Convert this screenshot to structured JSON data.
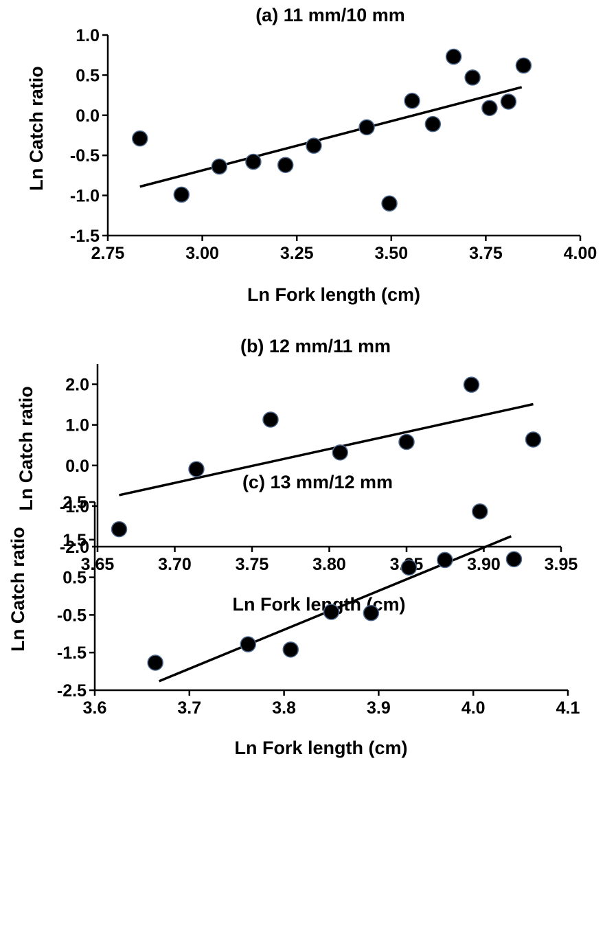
{
  "chart_data": [
    {
      "type": "scatter",
      "title": "(a) 11 mm/10 mm",
      "xlabel": "Ln Fork length (cm)",
      "ylabel": "Ln Catch ratio",
      "xlim": [
        2.75,
        4.0
      ],
      "ylim": [
        -1.5,
        1.0
      ],
      "xticks": [
        "2.75",
        "3.00",
        "3.25",
        "3.50",
        "3.75",
        "4.00"
      ],
      "yticks": [
        "1.0",
        "0.5",
        "0.0",
        "-0.5",
        "-1.0",
        "-1.5"
      ],
      "grid": false,
      "series": [
        {
          "marker": "circle",
          "color": "#000000",
          "x": [
            2.835,
            2.945,
            3.045,
            3.135,
            3.22,
            3.295,
            3.435,
            3.495,
            3.555,
            3.61,
            3.665,
            3.715,
            3.76,
            3.81,
            3.85
          ],
          "y": [
            -0.29,
            -0.99,
            -0.64,
            -0.58,
            -0.62,
            -0.38,
            -0.15,
            -1.1,
            0.18,
            -0.11,
            0.73,
            0.47,
            0.09,
            0.17,
            0.62
          ]
        }
      ],
      "trendline": {
        "type": "linear",
        "x": [
          2.835,
          3.845
        ],
        "y": [
          -0.89,
          0.35
        ]
      }
    },
    {
      "type": "scatter",
      "title": "(b) 12 mm/11 mm",
      "xlabel": "Ln Fork length (cm)",
      "ylabel": "Ln Catch ratio",
      "xlim": [
        3.65,
        3.95
      ],
      "ylim": [
        -2.0,
        2.5
      ],
      "xticks": [
        "3.65",
        "3.70",
        "3.75",
        "3.80",
        "3.85",
        "3.90",
        "3.95"
      ],
      "yticks": [
        "2.0",
        "1.0",
        "0.0",
        "-1.0",
        "-2.0"
      ],
      "grid": false,
      "series": [
        {
          "marker": "circle",
          "color": "#000000",
          "x": [
            3.664,
            3.714,
            3.762,
            3.807,
            3.85,
            3.892,
            3.932
          ],
          "y": [
            -1.57,
            -0.09,
            1.13,
            0.32,
            0.58,
            1.99,
            0.64
          ]
        }
      ],
      "trendline": {
        "type": "linear",
        "x": [
          3.664,
          3.932
        ],
        "y": [
          -0.73,
          1.51
        ]
      }
    },
    {
      "type": "scatter",
      "title": "(c) 13 mm/12 mm",
      "xlabel": "Ln Fork length (cm)",
      "ylabel": "Ln Catch ratio",
      "xlim": [
        3.6,
        4.1
      ],
      "ylim": [
        -2.5,
        2.5
      ],
      "xticks": [
        "3.6",
        "3.7",
        "3.8",
        "3.9",
        "4.0",
        "4.1"
      ],
      "yticks": [
        "2.5",
        "1.5",
        "0.5",
        "-0.5",
        "-1.5",
        "-2.5"
      ],
      "grid": false,
      "series": [
        {
          "marker": "circle",
          "color": "#000000",
          "x": [
            3.664,
            3.762,
            3.807,
            3.85,
            3.892,
            3.932,
            3.97,
            4.007,
            4.043
          ],
          "y": [
            -1.77,
            -1.28,
            -1.42,
            -0.42,
            -0.45,
            0.76,
            0.96,
            2.25,
            0.98
          ]
        }
      ],
      "trendline": {
        "type": "linear",
        "x": [
          3.668,
          4.04
        ],
        "y": [
          -2.26,
          1.59
        ]
      }
    }
  ]
}
